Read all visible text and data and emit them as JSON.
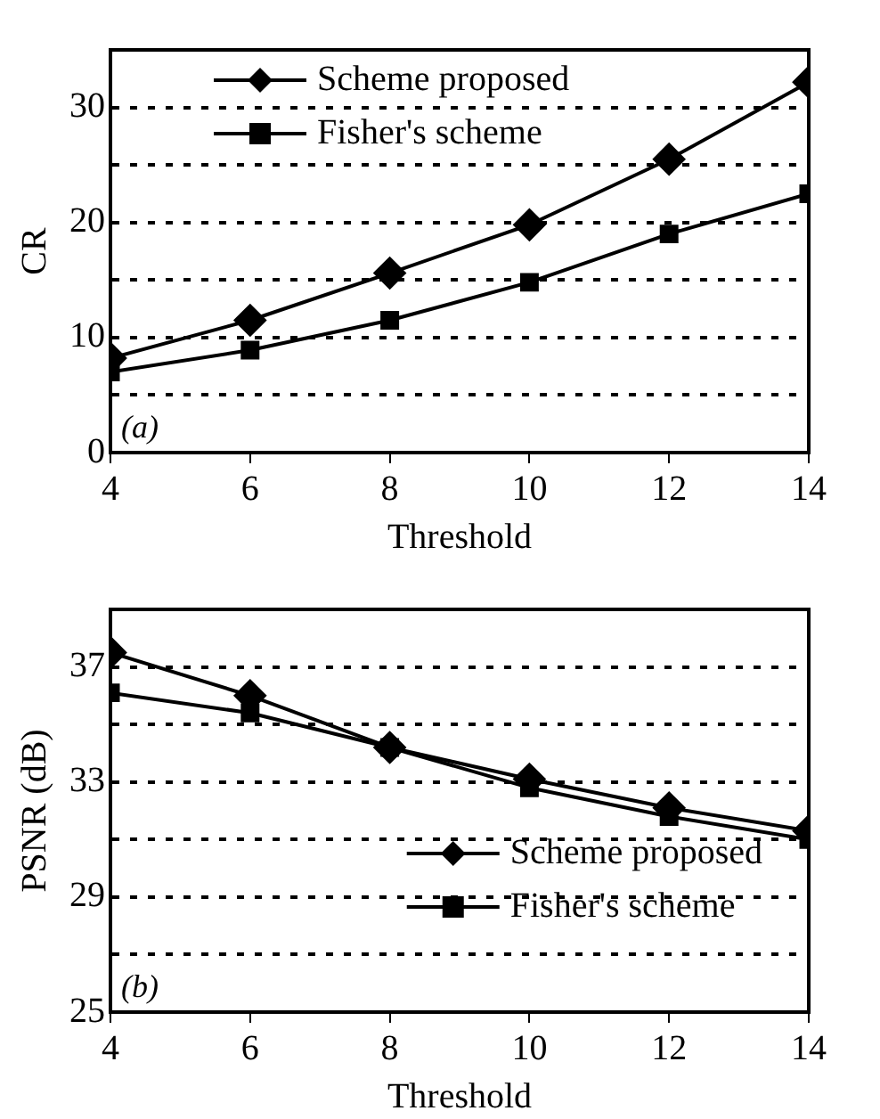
{
  "chart_data": [
    {
      "type": "line",
      "xlabel": "Threshold",
      "ylabel": "CR",
      "x": [
        4,
        6,
        8,
        10,
        12,
        14
      ],
      "series": [
        {
          "name": "Scheme proposed",
          "color": "#000000",
          "marker": "diamond",
          "values": [
            8.2,
            11.5,
            15.6,
            19.8,
            25.5,
            32.2
          ]
        },
        {
          "name": "Fisher's scheme",
          "color": "#000000",
          "marker": "square",
          "values": [
            7.0,
            8.9,
            11.5,
            14.8,
            19.0,
            22.5
          ]
        }
      ],
      "xlim": [
        4,
        14
      ],
      "xticks": [
        4,
        6,
        8,
        10,
        12,
        14
      ],
      "ylim": [
        0,
        35
      ],
      "yticks": [
        0,
        {
          "value": 5,
          "label": null
        },
        10,
        {
          "value": 15,
          "label": null
        },
        20,
        {
          "value": 25,
          "label": null
        },
        30
      ],
      "grid": "y",
      "legend": "top left",
      "annotations": [
        "(a)"
      ]
    },
    {
      "type": "line",
      "xlabel": "Threshold",
      "ylabel": "PSNR (dB)",
      "x": [
        4,
        6,
        8,
        10,
        12,
        14
      ],
      "series": [
        {
          "name": "Scheme proposed",
          "color": "#000000",
          "marker": "diamond",
          "values": [
            37.5,
            36.0,
            34.2,
            33.1,
            32.1,
            31.3
          ]
        },
        {
          "name": "Fisher's scheme",
          "color": "#000000",
          "marker": "square",
          "values": [
            36.1,
            35.4,
            34.2,
            32.8,
            31.8,
            31.0
          ]
        }
      ],
      "xlim": [
        4,
        14
      ],
      "xticks": [
        4,
        6,
        8,
        10,
        12,
        14
      ],
      "ylim": [
        25,
        39
      ],
      "yticks": [
        25,
        {
          "value": 27,
          "label": null
        },
        29,
        {
          "value": 31,
          "label": null
        },
        33,
        {
          "value": 35,
          "label": null
        },
        37
      ],
      "grid": "y",
      "legend": "bottom right",
      "annotations": [
        "(b)"
      ]
    }
  ]
}
